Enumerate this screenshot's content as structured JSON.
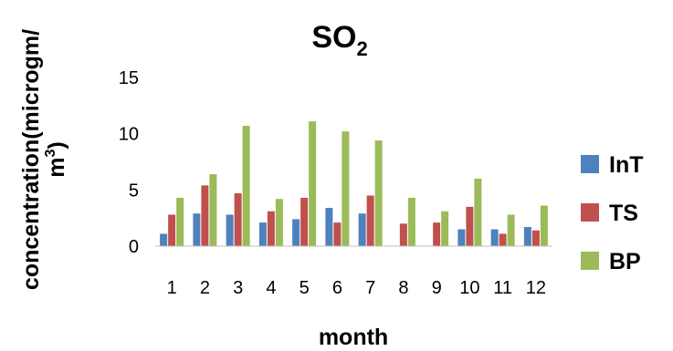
{
  "chart_data": {
    "type": "bar",
    "title": "SO",
    "title_subscript": "2",
    "xlabel": "month",
    "ylabel_line1": "concentration(microgm/",
    "ylabel_line2": "m",
    "ylabel_superscript": "3",
    "ylabel_line2_end": ")",
    "ylim": [
      0,
      15
    ],
    "yticks": [
      "0",
      "5",
      "10",
      "15"
    ],
    "grid": false,
    "legend_position": "right",
    "categories": [
      "1",
      "2",
      "3",
      "4",
      "5",
      "6",
      "7",
      "8",
      "9",
      "10",
      "11",
      "12"
    ],
    "series": [
      {
        "name": "InT",
        "color": "#4f81bd",
        "values": [
          1.1,
          2.9,
          2.8,
          2.1,
          2.4,
          3.4,
          2.9,
          0,
          0,
          1.5,
          1.5,
          1.7
        ]
      },
      {
        "name": "TS",
        "color": "#c0504d",
        "values": [
          2.8,
          5.4,
          4.7,
          3.1,
          4.3,
          2.1,
          4.5,
          2.0,
          2.1,
          3.5,
          1.1,
          1.4
        ]
      },
      {
        "name": "BP",
        "color": "#9bbb59",
        "values": [
          4.3,
          6.4,
          10.7,
          4.2,
          11.1,
          10.2,
          9.4,
          4.3,
          3.1,
          6.0,
          2.8,
          3.6
        ]
      }
    ]
  }
}
